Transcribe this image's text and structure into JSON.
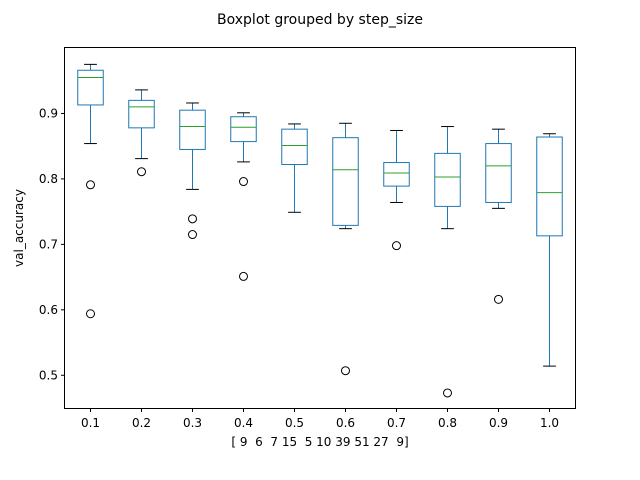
{
  "chart_data": {
    "type": "boxplot",
    "title": "Boxplot grouped by step_size",
    "xlabel": "[ 9  6  7 15  5 10 39 51 27  9]",
    "ylabel": "val_accuracy",
    "ylim": [
      0.45,
      1.0
    ],
    "yticks": [
      0.5,
      0.6,
      0.7,
      0.8,
      0.9
    ],
    "ytick_labels": [
      "0.5",
      "0.6",
      "0.7",
      "0.8",
      "0.9"
    ],
    "categories": [
      "0.1",
      "0.2",
      "0.3",
      "0.4",
      "0.5",
      "0.6",
      "0.7",
      "0.8",
      "0.9",
      "1.0"
    ],
    "grid": false,
    "box_color": "#1f77b4",
    "median_color": "#2ca02c",
    "boxes": [
      {
        "category": "0.1",
        "whisker_low": 0.854,
        "q1": 0.913,
        "median": 0.955,
        "q3": 0.966,
        "whisker_high": 0.975,
        "outliers": [
          0.791,
          0.594
        ]
      },
      {
        "category": "0.2",
        "whisker_low": 0.831,
        "q1": 0.878,
        "median": 0.91,
        "q3": 0.92,
        "whisker_high": 0.936,
        "outliers": [
          0.811
        ]
      },
      {
        "category": "0.3",
        "whisker_low": 0.784,
        "q1": 0.845,
        "median": 0.88,
        "q3": 0.905,
        "whisker_high": 0.916,
        "outliers": [
          0.739,
          0.715
        ]
      },
      {
        "category": "0.4",
        "whisker_low": 0.826,
        "q1": 0.857,
        "median": 0.879,
        "q3": 0.895,
        "whisker_high": 0.901,
        "outliers": [
          0.796,
          0.651
        ]
      },
      {
        "category": "0.5",
        "whisker_low": 0.749,
        "q1": 0.822,
        "median": 0.851,
        "q3": 0.876,
        "whisker_high": 0.884,
        "outliers": []
      },
      {
        "category": "0.6",
        "whisker_low": 0.724,
        "q1": 0.729,
        "median": 0.814,
        "q3": 0.863,
        "whisker_high": 0.885,
        "outliers": [
          0.507
        ]
      },
      {
        "category": "0.7",
        "whisker_low": 0.764,
        "q1": 0.789,
        "median": 0.809,
        "q3": 0.825,
        "whisker_high": 0.874,
        "outliers": [
          0.698
        ]
      },
      {
        "category": "0.8",
        "whisker_low": 0.724,
        "q1": 0.758,
        "median": 0.803,
        "q3": 0.839,
        "whisker_high": 0.88,
        "outliers": [
          0.473
        ]
      },
      {
        "category": "0.9",
        "whisker_low": 0.755,
        "q1": 0.764,
        "median": 0.82,
        "q3": 0.854,
        "whisker_high": 0.876,
        "outliers": [
          0.616
        ]
      },
      {
        "category": "1.0",
        "whisker_low": 0.514,
        "q1": 0.713,
        "median": 0.779,
        "q3": 0.864,
        "whisker_high": 0.869,
        "outliers": []
      }
    ]
  }
}
